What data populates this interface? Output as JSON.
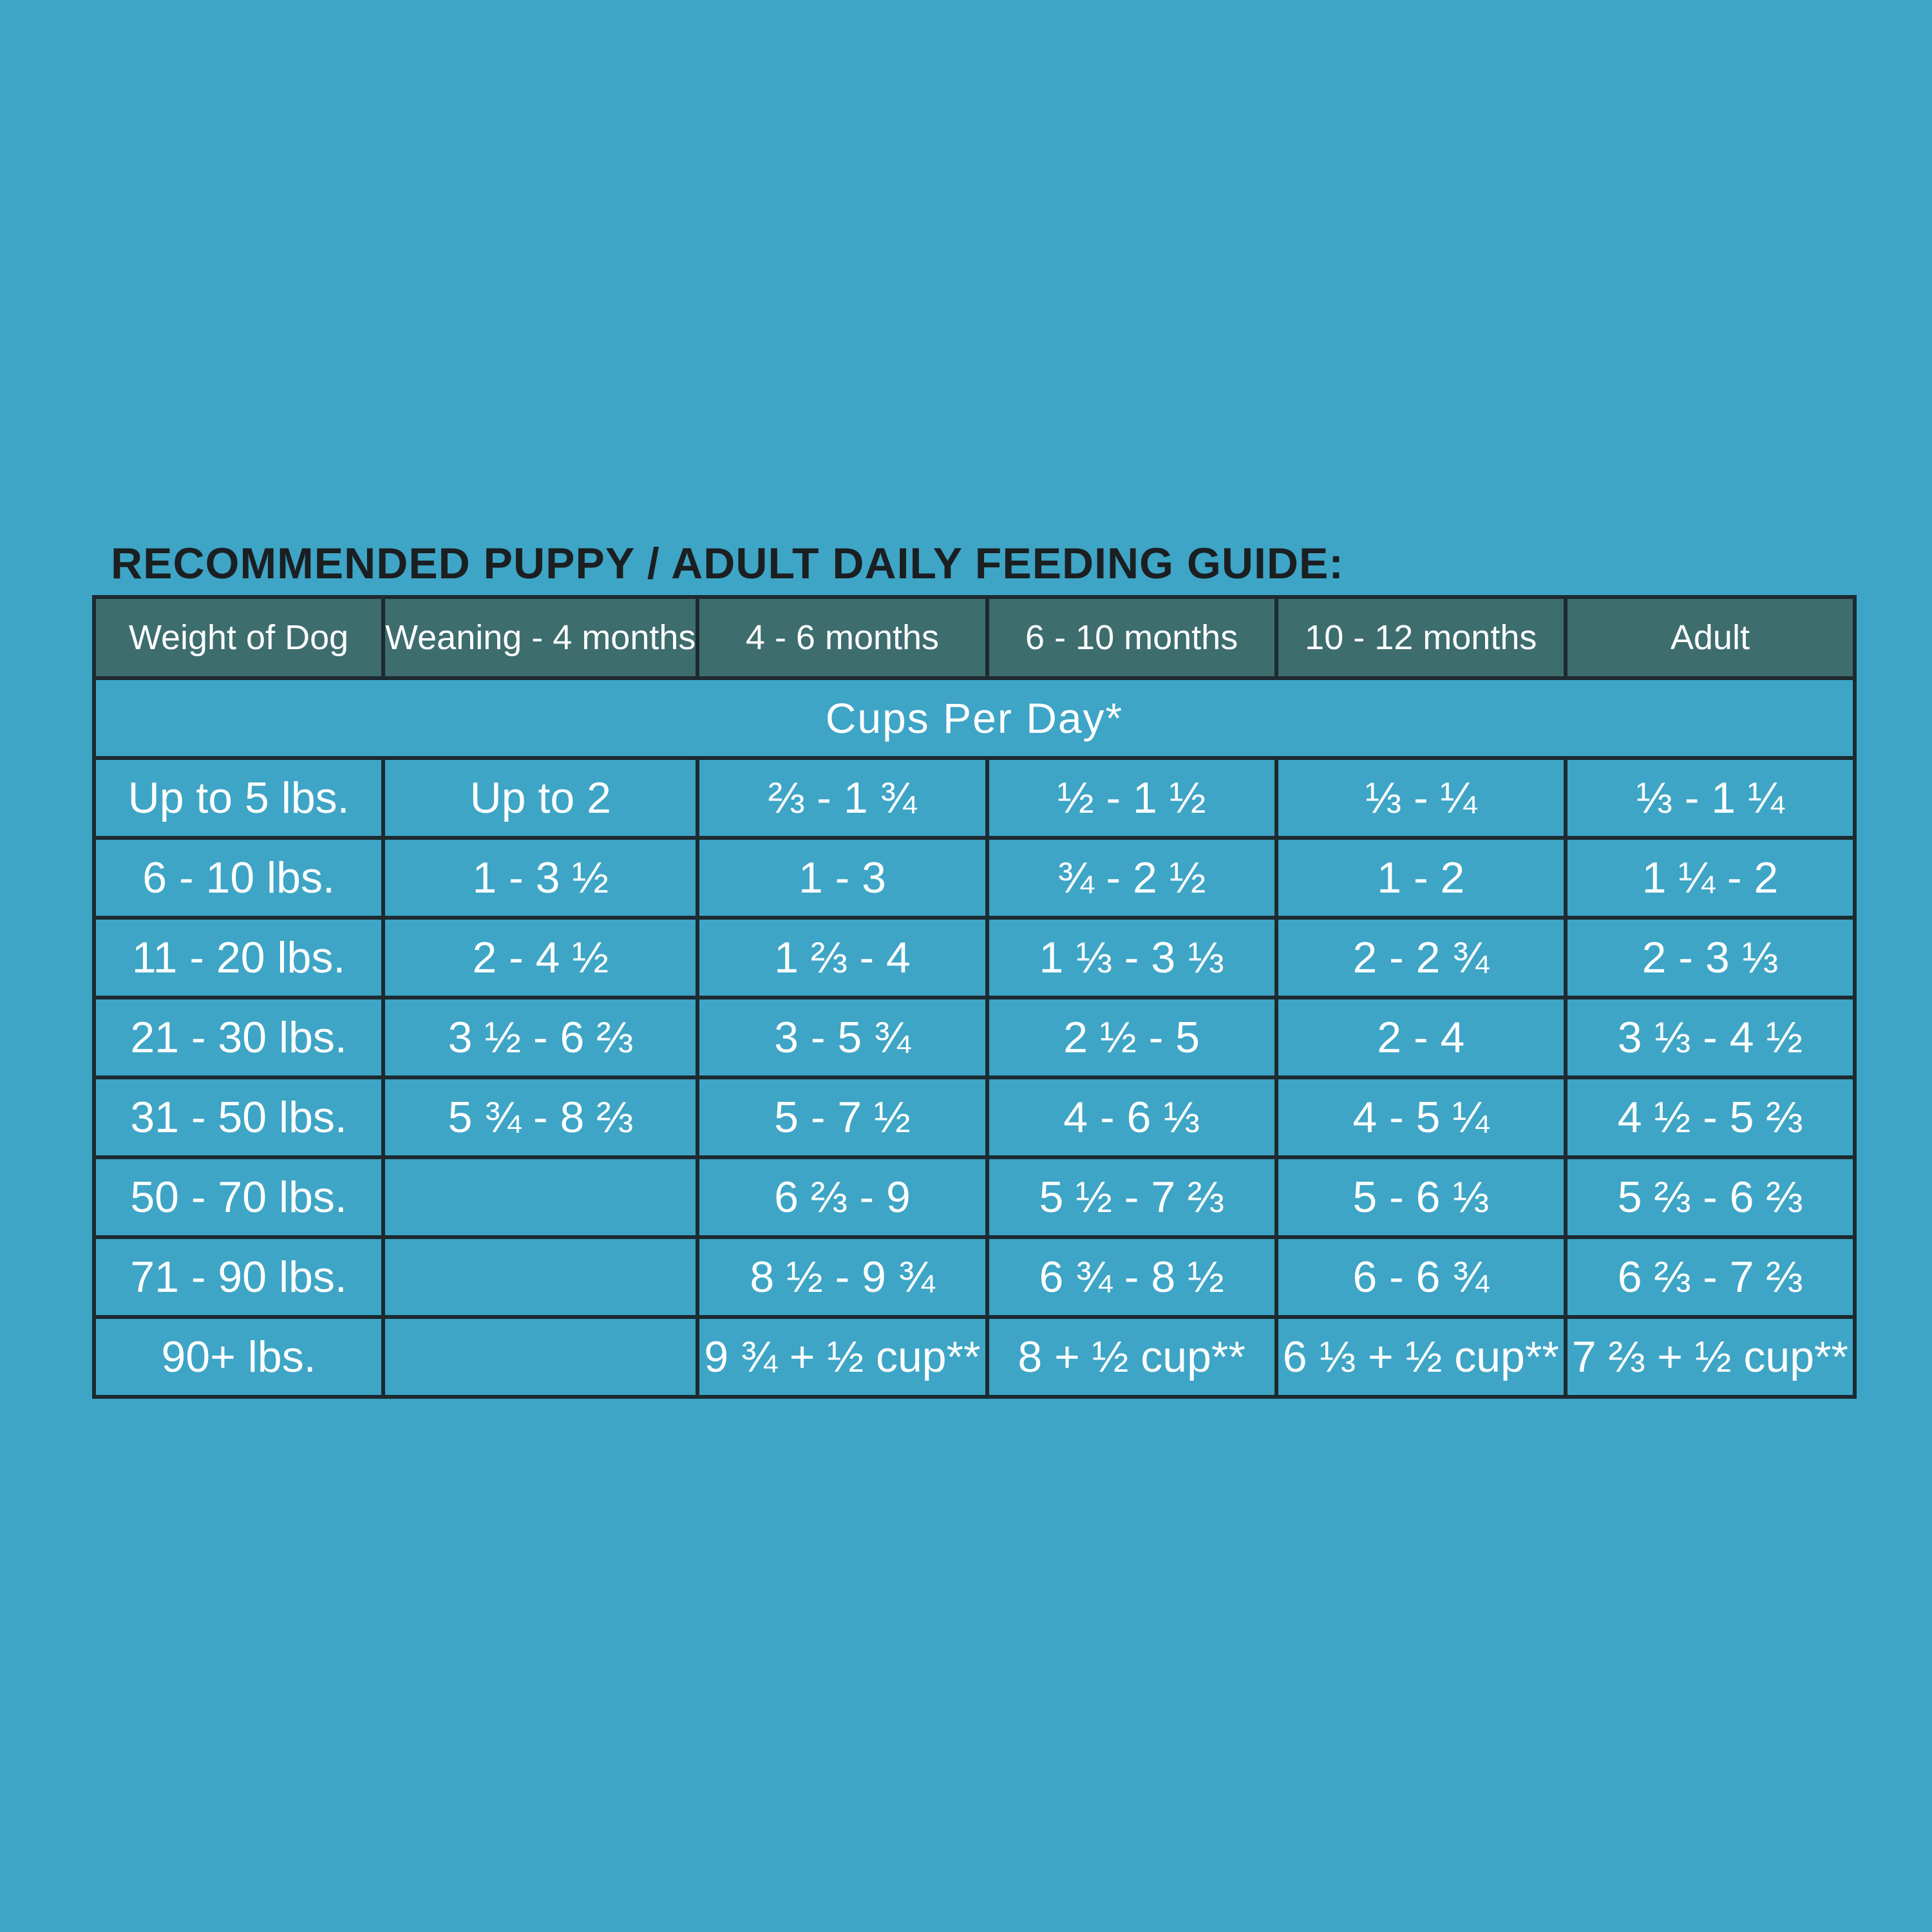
{
  "title": "RECOMMENDED PUPPY / ADULT DAILY FEEDING GUIDE:",
  "table": {
    "headers": [
      "Weight of Dog",
      "Weaning - 4 months",
      "4 - 6 months",
      "6 - 10 months",
      "10 - 12 months",
      "Adult"
    ],
    "subheader": "Cups Per Day*",
    "rows": [
      [
        "Up to 5 lbs.",
        "Up to 2",
        "⅔ - 1 ¾",
        "½ - 1 ½",
        "⅓ - ¼",
        "⅓ - 1 ¼"
      ],
      [
        "6 - 10 lbs.",
        "1 - 3 ½",
        "1 - 3",
        "¾ - 2 ½",
        "1 - 2",
        "1 ¼ - 2"
      ],
      [
        "11 - 20 lbs.",
        "2 - 4 ½",
        "1 ⅔ - 4",
        "1 ⅓ - 3 ⅓",
        "2 - 2 ¾",
        "2 - 3 ⅓"
      ],
      [
        "21 - 30 lbs.",
        "3 ½ - 6 ⅔",
        "3 - 5 ¾",
        "2 ½ - 5",
        "2 - 4",
        "3 ⅓ - 4 ½"
      ],
      [
        "31 - 50 lbs.",
        "5 ¾ - 8 ⅔",
        "5 - 7 ½",
        "4 - 6 ⅓",
        "4 - 5 ¼",
        "4 ½ - 5 ⅔"
      ],
      [
        "50 - 70 lbs.",
        null,
        "6 ⅔ - 9",
        "5 ½ -  7 ⅔",
        "5 -  6 ⅓",
        "5 ⅔ -  6 ⅔"
      ],
      [
        "71 - 90 lbs.",
        null,
        "8 ½ - 9 ¾",
        "6 ¾ -  8 ½",
        "6 -  6 ¾",
        "6 ⅔ -  7 ⅔"
      ],
      [
        "90+ lbs.",
        null,
        "9 ¾ + ½ cup**",
        "8 + ½ cup**",
        "6 ⅓ + ½ cup**",
        "7 ⅔ + ½ cup**"
      ]
    ]
  }
}
